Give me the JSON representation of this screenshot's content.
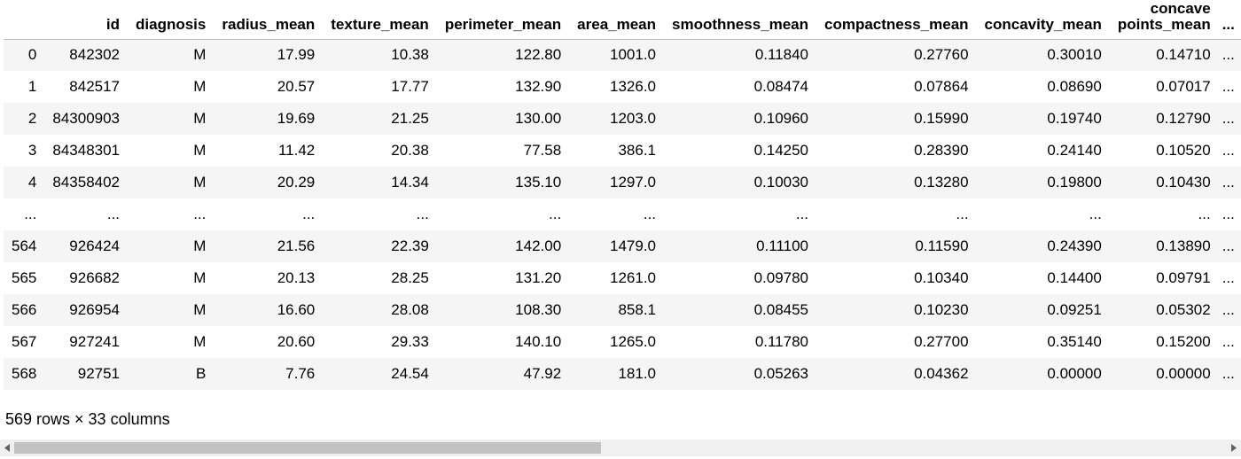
{
  "table": {
    "columns": [
      "",
      "id",
      "diagnosis",
      "radius_mean",
      "texture_mean",
      "perimeter_mean",
      "area_mean",
      "smoothness_mean",
      "compactness_mean",
      "concavity_mean",
      "concave points_mean",
      "..."
    ],
    "rows": [
      [
        "0",
        "842302",
        "M",
        "17.99",
        "10.38",
        "122.80",
        "1001.0",
        "0.11840",
        "0.27760",
        "0.30010",
        "0.14710",
        "..."
      ],
      [
        "1",
        "842517",
        "M",
        "20.57",
        "17.77",
        "132.90",
        "1326.0",
        "0.08474",
        "0.07864",
        "0.08690",
        "0.07017",
        "..."
      ],
      [
        "2",
        "84300903",
        "M",
        "19.69",
        "21.25",
        "130.00",
        "1203.0",
        "0.10960",
        "0.15990",
        "0.19740",
        "0.12790",
        "..."
      ],
      [
        "3",
        "84348301",
        "M",
        "11.42",
        "20.38",
        "77.58",
        "386.1",
        "0.14250",
        "0.28390",
        "0.24140",
        "0.10520",
        "..."
      ],
      [
        "4",
        "84358402",
        "M",
        "20.29",
        "14.34",
        "135.10",
        "1297.0",
        "0.10030",
        "0.13280",
        "0.19800",
        "0.10430",
        "..."
      ],
      [
        "...",
        "...",
        "...",
        "...",
        "...",
        "...",
        "...",
        "...",
        "...",
        "...",
        "...",
        "..."
      ],
      [
        "564",
        "926424",
        "M",
        "21.56",
        "22.39",
        "142.00",
        "1479.0",
        "0.11100",
        "0.11590",
        "0.24390",
        "0.13890",
        "..."
      ],
      [
        "565",
        "926682",
        "M",
        "20.13",
        "28.25",
        "131.20",
        "1261.0",
        "0.09780",
        "0.10340",
        "0.14400",
        "0.09791",
        "..."
      ],
      [
        "566",
        "926954",
        "M",
        "16.60",
        "28.08",
        "108.30",
        "858.1",
        "0.08455",
        "0.10230",
        "0.09251",
        "0.05302",
        "..."
      ],
      [
        "567",
        "927241",
        "M",
        "20.60",
        "29.33",
        "140.10",
        "1265.0",
        "0.11780",
        "0.27700",
        "0.35140",
        "0.15200",
        "..."
      ],
      [
        "568",
        "92751",
        "B",
        "7.76",
        "24.54",
        "47.92",
        "181.0",
        "0.05263",
        "0.04362",
        "0.00000",
        "0.00000",
        "..."
      ]
    ]
  },
  "shape_text": "569 rows × 33 columns",
  "scrollbar": {
    "left_arrow_icon": "triangle-left-icon",
    "right_arrow_icon": "triangle-right-icon"
  }
}
